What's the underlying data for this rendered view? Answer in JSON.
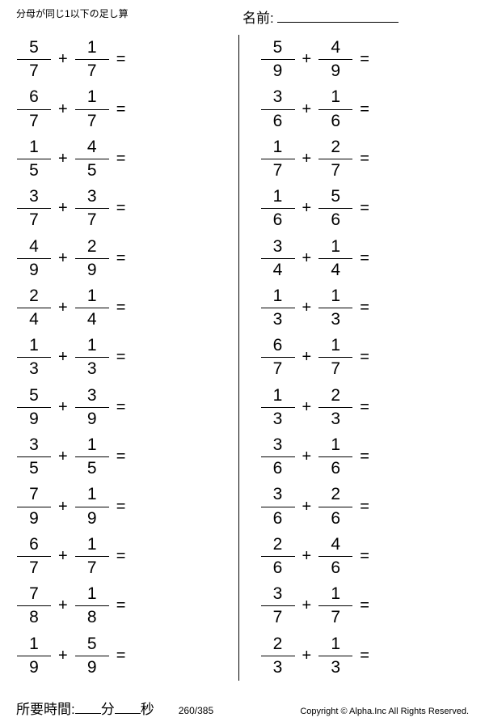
{
  "header": {
    "title": "分母が同じ1以下の足し算",
    "name_label": "名前:"
  },
  "left": [
    {
      "n1": "5",
      "d1": "7",
      "n2": "1",
      "d2": "7"
    },
    {
      "n1": "6",
      "d1": "7",
      "n2": "1",
      "d2": "7"
    },
    {
      "n1": "1",
      "d1": "5",
      "n2": "4",
      "d2": "5"
    },
    {
      "n1": "3",
      "d1": "7",
      "n2": "3",
      "d2": "7"
    },
    {
      "n1": "4",
      "d1": "9",
      "n2": "2",
      "d2": "9"
    },
    {
      "n1": "2",
      "d1": "4",
      "n2": "1",
      "d2": "4"
    },
    {
      "n1": "1",
      "d1": "3",
      "n2": "1",
      "d2": "3"
    },
    {
      "n1": "5",
      "d1": "9",
      "n2": "3",
      "d2": "9"
    },
    {
      "n1": "3",
      "d1": "5",
      "n2": "1",
      "d2": "5"
    },
    {
      "n1": "7",
      "d1": "9",
      "n2": "1",
      "d2": "9"
    },
    {
      "n1": "6",
      "d1": "7",
      "n2": "1",
      "d2": "7"
    },
    {
      "n1": "7",
      "d1": "8",
      "n2": "1",
      "d2": "8"
    },
    {
      "n1": "1",
      "d1": "9",
      "n2": "5",
      "d2": "9"
    }
  ],
  "right": [
    {
      "n1": "5",
      "d1": "9",
      "n2": "4",
      "d2": "9"
    },
    {
      "n1": "3",
      "d1": "6",
      "n2": "1",
      "d2": "6"
    },
    {
      "n1": "1",
      "d1": "7",
      "n2": "2",
      "d2": "7"
    },
    {
      "n1": "1",
      "d1": "6",
      "n2": "5",
      "d2": "6"
    },
    {
      "n1": "3",
      "d1": "4",
      "n2": "1",
      "d2": "4"
    },
    {
      "n1": "1",
      "d1": "3",
      "n2": "1",
      "d2": "3"
    },
    {
      "n1": "6",
      "d1": "7",
      "n2": "1",
      "d2": "7"
    },
    {
      "n1": "1",
      "d1": "3",
      "n2": "2",
      "d2": "3"
    },
    {
      "n1": "3",
      "d1": "6",
      "n2": "1",
      "d2": "6"
    },
    {
      "n1": "3",
      "d1": "6",
      "n2": "2",
      "d2": "6"
    },
    {
      "n1": "2",
      "d1": "6",
      "n2": "4",
      "d2": "6"
    },
    {
      "n1": "3",
      "d1": "7",
      "n2": "1",
      "d2": "7"
    },
    {
      "n1": "2",
      "d1": "3",
      "n2": "1",
      "d2": "3"
    }
  ],
  "footer": {
    "time_label": "所要時間:",
    "minute": "分",
    "second": "秒",
    "page": "260/385",
    "copyright": "Copyright ©  Alpha.Inc All Rights Reserved."
  },
  "symbols": {
    "plus": "+",
    "equals": "="
  }
}
